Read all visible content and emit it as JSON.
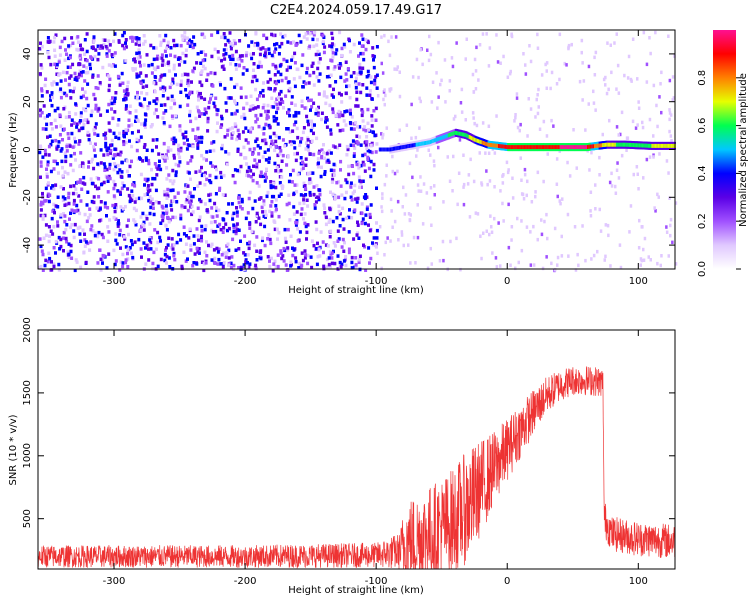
{
  "title": "C2E4.2024.059.17.49.G17",
  "chart_data": [
    {
      "type": "heatmap",
      "xlabel": "Height of straight line (km)",
      "ylabel": "Frequency (Hz)",
      "xlim": [
        -358,
        128
      ],
      "ylim": [
        -50,
        50
      ],
      "xticks": [
        -300,
        -200,
        -100,
        0,
        100
      ],
      "yticks": [
        -40,
        -20,
        0,
        20,
        40
      ],
      "colorbar": {
        "label": "Normalized spectral amplitude",
        "range": [
          0,
          1
        ],
        "ticks": [
          0.0,
          0.2,
          0.4,
          0.6,
          0.8
        ],
        "colors": [
          "#ffffff",
          "#e0c8ff",
          "#a050ff",
          "#5a00e6",
          "#0000ff",
          "#00c8ff",
          "#00ff50",
          "#e6ff00",
          "#ff8000",
          "#ff0000",
          "#ff1090"
        ]
      },
      "noise_region": {
        "x_range": [
          -358,
          -100
        ],
        "y_range": [
          -50,
          50
        ],
        "amplitude_range": [
          0.05,
          0.45
        ]
      },
      "ridge": [
        {
          "x": -98,
          "y": 0,
          "a": 0.35
        },
        {
          "x": -90,
          "y": 0,
          "a": 0.4
        },
        {
          "x": -80,
          "y": 1,
          "a": 0.42
        },
        {
          "x": -70,
          "y": 2,
          "a": 0.45
        },
        {
          "x": -60,
          "y": 3,
          "a": 0.48
        },
        {
          "x": -50,
          "y": 5,
          "a": 0.52
        },
        {
          "x": -40,
          "y": 7,
          "a": 0.6
        },
        {
          "x": -32,
          "y": 6,
          "a": 0.62
        },
        {
          "x": -25,
          "y": 4,
          "a": 0.7
        },
        {
          "x": -15,
          "y": 2,
          "a": 0.8
        },
        {
          "x": 0,
          "y": 1,
          "a": 0.9
        },
        {
          "x": 20,
          "y": 1,
          "a": 0.9
        },
        {
          "x": 40,
          "y": 1,
          "a": 0.95
        },
        {
          "x": 60,
          "y": 1,
          "a": 0.95
        },
        {
          "x": 75,
          "y": 2,
          "a": 0.7
        },
        {
          "x": 90,
          "y": 2,
          "a": 0.6
        },
        {
          "x": 110,
          "y": 1.5,
          "a": 0.65
        },
        {
          "x": 128,
          "y": 1.5,
          "a": 0.65
        }
      ]
    },
    {
      "type": "line",
      "xlabel": "Height of straight line (km)",
      "ylabel": "SNR (10 * v/v)",
      "xlim": [
        -358,
        128
      ],
      "ylim": [
        100,
        2000
      ],
      "xticks": [
        -300,
        -200,
        -100,
        0,
        100
      ],
      "yticks": [
        500,
        1000,
        1500,
        2000
      ],
      "color": "#ee3333",
      "series": [
        {
          "x": [
            -358,
            -300,
            -200,
            -100,
            -82,
            -78,
            -60,
            -45,
            -30,
            -20,
            -10,
            0,
            10,
            20,
            30,
            40,
            50,
            60,
            70,
            73,
            74,
            80,
            100,
            128
          ],
          "base": [
            200,
            200,
            200,
            210,
            240,
            300,
            380,
            450,
            600,
            750,
            900,
            1050,
            1200,
            1350,
            1480,
            1560,
            1600,
            1600,
            1590,
            1580,
            500,
            380,
            340,
            320
          ],
          "noise": [
            90,
            90,
            90,
            100,
            150,
            350,
            380,
            420,
            450,
            380,
            300,
            250,
            220,
            180,
            150,
            130,
            120,
            120,
            120,
            120,
            150,
            140,
            140,
            140
          ]
        }
      ]
    }
  ]
}
